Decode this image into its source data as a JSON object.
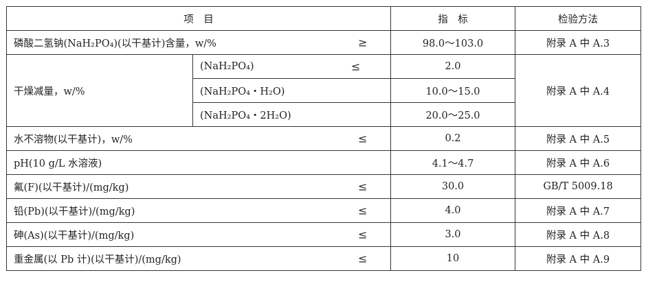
{
  "header": {
    "item": "项　目",
    "index": "指　标",
    "method": "检验方法"
  },
  "rows": [
    {
      "item": "磷酸二氢钠(NaH₂PO₄)(以干基计)含量，w/%",
      "symbol": "≥",
      "value": "98.0～103.0",
      "method": "附录 A 中 A.3"
    },
    {
      "item": "干燥减量，w/%",
      "method": "附录 A 中 A.4",
      "sub": [
        {
          "form": "(NaH₂PO₄)",
          "symbol": "≤",
          "value": "2.0"
        },
        {
          "form": "(NaH₂PO₄・H₂O)",
          "value": "10.0～15.0"
        },
        {
          "form": "(NaH₂PO₄・2H₂O)",
          "value": "20.0～25.0"
        }
      ]
    },
    {
      "item": "水不溶物(以干基计)，w/%",
      "symbol": "≤",
      "value": "0.2",
      "method": "附录 A 中 A.5"
    },
    {
      "item": "pH(10 g/L 水溶液)",
      "value": "4.1～4.7",
      "method": "附录 A 中 A.6"
    },
    {
      "item": "氟(F)(以干基计)/(mg/kg)",
      "symbol": "≤",
      "value": "30.0",
      "method": "GB/T 5009.18"
    },
    {
      "item": "铅(Pb)(以干基计)/(mg/kg)",
      "symbol": "≤",
      "value": "4.0",
      "method": "附录 A 中 A.7"
    },
    {
      "item": "砷(As)(以干基计)/(mg/kg)",
      "symbol": "≤",
      "value": "3.0",
      "method": "附录 A 中 A.8"
    },
    {
      "item": "重金属(以 Pb 计)(以干基计)/(mg/kg)",
      "symbol": "≤",
      "value": "10",
      "method": "附录 A 中 A.9"
    }
  ]
}
